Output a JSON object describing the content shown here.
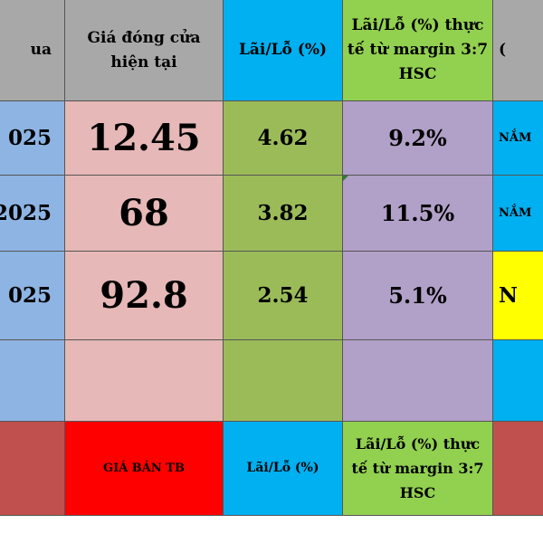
{
  "header": {
    "col0": "ua",
    "col1": "Giá đóng cửa hiện tại",
    "col2": "Lãi/Lỗ (%)",
    "col3": "Lãi/Lỗ (%) thực tế từ margin 3:7 HSC",
    "col4": "("
  },
  "rows": [
    {
      "date": "025",
      "close": "12.45",
      "pl": "4.62",
      "margin": "9.2%",
      "status": "NẮM"
    },
    {
      "date": "2025",
      "close": "68",
      "pl": "3.82",
      "margin": "11.5%",
      "status": "NẮM"
    },
    {
      "date": "025",
      "close": "92.8",
      "pl": "2.54",
      "margin": "5.1%",
      "status": "N"
    },
    {
      "date": "",
      "close": "",
      "pl": "",
      "margin": "",
      "status": ""
    }
  ],
  "footer": {
    "col0": "",
    "col1": "GIÁ BÁN TB",
    "col2": "Lãi/Lỗ (%)",
    "col3": "Lãi/Lỗ (%) thực tế từ margin 3:7 HSC",
    "col4": ""
  },
  "colors": {
    "header_gray": "#a8a8a8",
    "header_blue": "#00b0f0",
    "header_green": "#92d050",
    "date_blue": "#8eb4e3",
    "close_pink": "#e6b8b7",
    "pl_olive": "#9bbb59",
    "margin_purple": "#b1a0c7",
    "status_yellow": "#ffff00",
    "footer_red": "#ff0000",
    "footer_rose": "#c0504d"
  }
}
